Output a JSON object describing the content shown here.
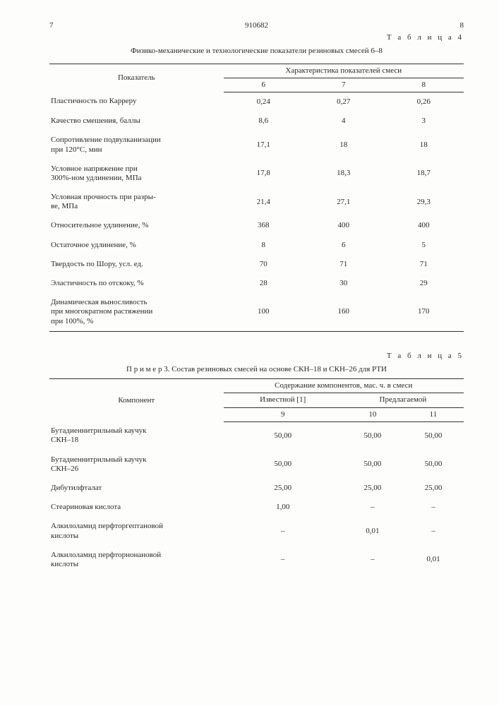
{
  "header": {
    "left_page": "7",
    "doc_number": "910682",
    "right_page": "8"
  },
  "table4": {
    "label": "Т а б л и ц а  4",
    "caption": "Физико-механические и технологические показатели резиновых смесей 6–8",
    "col_header_main": "Показатель",
    "col_header_group": "Характеристика показателей смеси",
    "cols": [
      "6",
      "7",
      "8"
    ],
    "rows": [
      {
        "label": "Пластичность по Карреру",
        "v": [
          "0,24",
          "0,27",
          "0,26"
        ]
      },
      {
        "label": "Качество смешения, баллы",
        "v": [
          "8,6",
          "4",
          "3"
        ]
      },
      {
        "label": "Сопротивление подвулканизации\nпри 120°С, мин",
        "v": [
          "17,1",
          "18",
          "18"
        ]
      },
      {
        "label": "Условное напряжение при\n300%-ном удлинении, МПа",
        "v": [
          "17,8",
          "18,3",
          "18,7"
        ]
      },
      {
        "label": "Условная прочность при разры-\nве, МПа",
        "v": [
          "21,4",
          "27,1",
          "29,3"
        ]
      },
      {
        "label": "Относительное удлинение, %",
        "v": [
          "368",
          "400",
          "400"
        ]
      },
      {
        "label": "Остаточное удлинение, %",
        "v": [
          "8",
          "6",
          "5"
        ]
      },
      {
        "label": "Твердость по Шору, усл. ед.",
        "v": [
          "70",
          "71",
          "71"
        ]
      },
      {
        "label": "Эластичность по отскоку, %",
        "v": [
          "28",
          "30",
          "29"
        ]
      },
      {
        "label": "Динамическая выносливость\nпри многократном растяжении\nпри 100%, %",
        "v": [
          "100",
          "160",
          "170"
        ]
      }
    ]
  },
  "table5": {
    "label": "Т а б л и ц а  5",
    "example_prefix": "П р и м е р  3.",
    "example_text": "Состав резиновых смесей на основе СКН–18 и СКН–26 для РТИ",
    "col_header_main": "Компонент",
    "col_header_group": "Содержание компонентов, мас. ч. в смеси",
    "sub_left": "Известной [1]",
    "sub_right": "Предлагаемой",
    "cols": [
      "9",
      "10",
      "11"
    ],
    "rows": [
      {
        "label": "Бутадиеннитрильный каучук\nСКН–18",
        "v": [
          "50,00",
          "50,00",
          "50,00"
        ]
      },
      {
        "label": "Бутадиеннитрильный каучук\nСКН–26",
        "v": [
          "50,00",
          "50,00",
          "50,00"
        ]
      },
      {
        "label": "Дибутилфталат",
        "v": [
          "25,00",
          "25,00",
          "25,00"
        ]
      },
      {
        "label": "Стеариновая кислота",
        "v": [
          "1,00",
          "–",
          "–"
        ]
      },
      {
        "label": "Алкилоламид перфторгептановой\nкислоты",
        "v": [
          "–",
          "0,01",
          "–"
        ]
      },
      {
        "label": "Алкилоламид перфторнонановой\nкислоты",
        "v": [
          "–",
          "–",
          "0,01"
        ]
      }
    ]
  },
  "style": {
    "text_color": "#2a2a2a",
    "bg_color": "#fdfdfb",
    "rule_color": "#333333",
    "font_family": "Times New Roman",
    "base_fontsize_pt": 11
  }
}
